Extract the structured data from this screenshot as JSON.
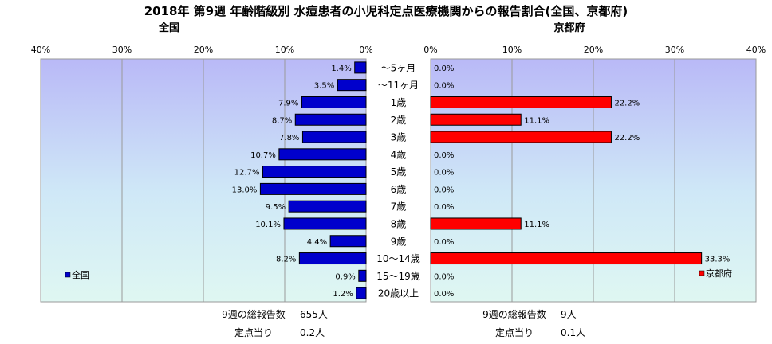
{
  "chart_data": {
    "type": "bar",
    "title": "2018年 第9週 年齢階級別 水痘患者の小児科定点医療機関からの報告割合(全国、京都府)",
    "categories": [
      "～5ヶ月",
      "～11ヶ月",
      "1歳",
      "2歳",
      "3歳",
      "4歳",
      "5歳",
      "6歳",
      "7歳",
      "8歳",
      "9歳",
      "10～14歳",
      "15～19歳",
      "20歳以上"
    ],
    "axis_ticks": [
      "0%",
      "10%",
      "20%",
      "30%",
      "40%"
    ],
    "xlim": [
      0,
      40
    ],
    "grid": true,
    "panels": [
      {
        "title": "全国",
        "legend": "全国",
        "legend_position": "bottom-left",
        "direction": "left",
        "color": "#0000cc",
        "values": [
          1.4,
          3.5,
          7.9,
          8.7,
          7.8,
          10.7,
          12.7,
          13.0,
          9.5,
          10.1,
          4.4,
          8.2,
          0.9,
          1.2
        ],
        "value_labels": [
          "1.4%",
          "3.5%",
          "7.9%",
          "8.7%",
          "7.8%",
          "10.7%",
          "12.7%",
          "13.0%",
          "9.5%",
          "10.1%",
          "4.4%",
          "8.2%",
          "0.9%",
          "1.2%"
        ],
        "footer": [
          {
            "label": "9週の総報告数",
            "value": "655人"
          },
          {
            "label": "定点当り",
            "value": "0.2人"
          }
        ]
      },
      {
        "title": "京都府",
        "legend": "京都府",
        "legend_position": "bottom-right",
        "direction": "right",
        "color": "#ff0000",
        "values": [
          0.0,
          0.0,
          22.2,
          11.1,
          22.2,
          0.0,
          0.0,
          0.0,
          0.0,
          11.1,
          0.0,
          33.3,
          0.0,
          0.0
        ],
        "value_labels": [
          "0.0%",
          "0.0%",
          "22.2%",
          "11.1%",
          "22.2%",
          "0.0%",
          "0.0%",
          "0.0%",
          "0.0%",
          "11.1%",
          "0.0%",
          "33.3%",
          "0.0%",
          "0.0%"
        ],
        "footer": [
          {
            "label": "9週の総報告数",
            "value": "9人"
          },
          {
            "label": "定点当り",
            "value": "0.1人"
          }
        ]
      }
    ]
  }
}
